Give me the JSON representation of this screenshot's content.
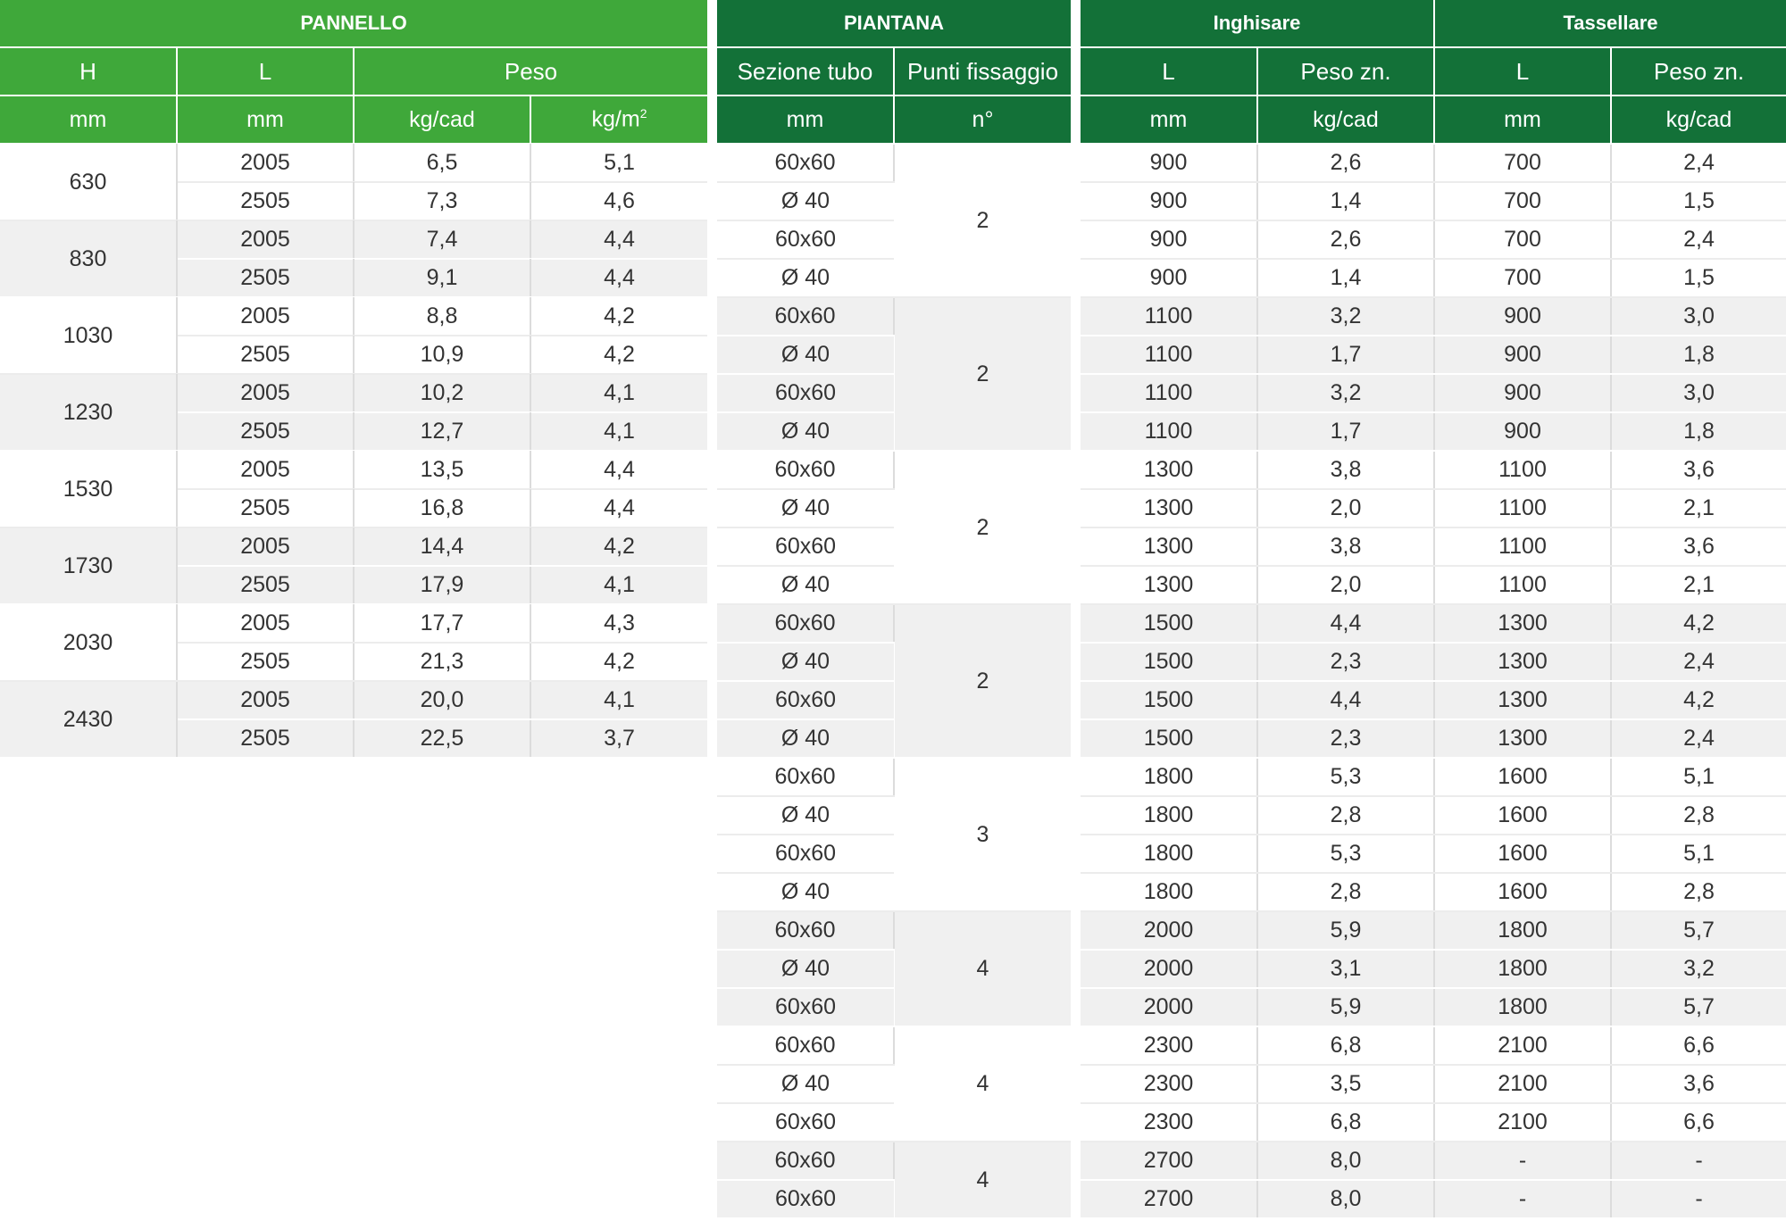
{
  "pannello": {
    "title": "PANNELLO",
    "col_h": "H",
    "col_l": "L",
    "col_peso": "Peso",
    "unit_h": "mm",
    "unit_l": "mm",
    "unit_kgcad": "kg/cad",
    "unit_kgm": "kg/m",
    "unit_kgm_sup": "2",
    "groups": [
      {
        "h": "630",
        "shade": "w",
        "rows": [
          {
            "l": "2005",
            "kgcad": "6,5",
            "kgm2": "5,1"
          },
          {
            "l": "2505",
            "kgcad": "7,3",
            "kgm2": "4,6"
          }
        ]
      },
      {
        "h": "830",
        "shade": "g",
        "rows": [
          {
            "l": "2005",
            "kgcad": "7,4",
            "kgm2": "4,4"
          },
          {
            "l": "2505",
            "kgcad": "9,1",
            "kgm2": "4,4"
          }
        ]
      },
      {
        "h": "1030",
        "shade": "w",
        "rows": [
          {
            "l": "2005",
            "kgcad": "8,8",
            "kgm2": "4,2"
          },
          {
            "l": "2505",
            "kgcad": "10,9",
            "kgm2": "4,2"
          }
        ]
      },
      {
        "h": "1230",
        "shade": "g",
        "rows": [
          {
            "l": "2005",
            "kgcad": "10,2",
            "kgm2": "4,1"
          },
          {
            "l": "2505",
            "kgcad": "12,7",
            "kgm2": "4,1"
          }
        ]
      },
      {
        "h": "1530",
        "shade": "w",
        "rows": [
          {
            "l": "2005",
            "kgcad": "13,5",
            "kgm2": "4,4"
          },
          {
            "l": "2505",
            "kgcad": "16,8",
            "kgm2": "4,4"
          }
        ]
      },
      {
        "h": "1730",
        "shade": "g",
        "rows": [
          {
            "l": "2005",
            "kgcad": "14,4",
            "kgm2": "4,2"
          },
          {
            "l": "2505",
            "kgcad": "17,9",
            "kgm2": "4,1"
          }
        ]
      },
      {
        "h": "2030",
        "shade": "w",
        "rows": [
          {
            "l": "2005",
            "kgcad": "17,7",
            "kgm2": "4,3"
          },
          {
            "l": "2505",
            "kgcad": "21,3",
            "kgm2": "4,2"
          }
        ]
      },
      {
        "h": "2430",
        "shade": "g",
        "rows": [
          {
            "l": "2005",
            "kgcad": "20,0",
            "kgm2": "4,1"
          },
          {
            "l": "2505",
            "kgcad": "22,5",
            "kgm2": "3,7"
          }
        ]
      }
    ]
  },
  "piantana": {
    "title": "PIANTANA",
    "col_sezione": "Sezione tubo",
    "col_punti": "Punti fissaggio",
    "unit_sezione": "mm",
    "unit_punti": "n°",
    "groups": [
      {
        "punti": "2",
        "shade": "w",
        "sections": [
          "60x60",
          "Ø 40",
          "60x60",
          "Ø 40"
        ]
      },
      {
        "punti": "2",
        "shade": "g",
        "sections": [
          "60x60",
          "Ø 40",
          "60x60",
          "Ø 40"
        ]
      },
      {
        "punti": "2",
        "shade": "w",
        "sections": [
          "60x60",
          "Ø 40",
          "60x60",
          "Ø 40"
        ]
      },
      {
        "punti": "2",
        "shade": "g",
        "sections": [
          "60x60",
          "Ø 40",
          "60x60",
          "Ø 40"
        ]
      },
      {
        "punti": "3",
        "shade": "w",
        "sections": [
          "60x60",
          "Ø 40",
          "60x60",
          "Ø 40"
        ]
      },
      {
        "punti": "4",
        "shade": "g",
        "sections": [
          "60x60",
          "Ø 40",
          "60x60"
        ]
      },
      {
        "punti": "4",
        "shade": "w",
        "sections": [
          "60x60",
          "Ø 40",
          "60x60"
        ]
      },
      {
        "punti": "4",
        "shade": "g",
        "sections": [
          "60x60",
          "60x60"
        ]
      }
    ]
  },
  "fixing": {
    "inghisare_title": "Inghisare",
    "tassellare_title": "Tassellare",
    "col_l": "L",
    "col_peso": "Peso zn.",
    "unit_mm": "mm",
    "unit_kgcad": "kg/cad",
    "groups": [
      {
        "shade": "w",
        "rows": [
          [
            "900",
            "2,6",
            "700",
            "2,4"
          ],
          [
            "900",
            "1,4",
            "700",
            "1,5"
          ],
          [
            "900",
            "2,6",
            "700",
            "2,4"
          ],
          [
            "900",
            "1,4",
            "700",
            "1,5"
          ]
        ]
      },
      {
        "shade": "g",
        "rows": [
          [
            "1100",
            "3,2",
            "900",
            "3,0"
          ],
          [
            "1100",
            "1,7",
            "900",
            "1,8"
          ],
          [
            "1100",
            "3,2",
            "900",
            "3,0"
          ],
          [
            "1100",
            "1,7",
            "900",
            "1,8"
          ]
        ]
      },
      {
        "shade": "w",
        "rows": [
          [
            "1300",
            "3,8",
            "1100",
            "3,6"
          ],
          [
            "1300",
            "2,0",
            "1100",
            "2,1"
          ],
          [
            "1300",
            "3,8",
            "1100",
            "3,6"
          ],
          [
            "1300",
            "2,0",
            "1100",
            "2,1"
          ]
        ]
      },
      {
        "shade": "g",
        "rows": [
          [
            "1500",
            "4,4",
            "1300",
            "4,2"
          ],
          [
            "1500",
            "2,3",
            "1300",
            "2,4"
          ],
          [
            "1500",
            "4,4",
            "1300",
            "4,2"
          ],
          [
            "1500",
            "2,3",
            "1300",
            "2,4"
          ]
        ]
      },
      {
        "shade": "w",
        "rows": [
          [
            "1800",
            "5,3",
            "1600",
            "5,1"
          ],
          [
            "1800",
            "2,8",
            "1600",
            "2,8"
          ],
          [
            "1800",
            "5,3",
            "1600",
            "5,1"
          ],
          [
            "1800",
            "2,8",
            "1600",
            "2,8"
          ]
        ]
      },
      {
        "shade": "g",
        "rows": [
          [
            "2000",
            "5,9",
            "1800",
            "5,7"
          ],
          [
            "2000",
            "3,1",
            "1800",
            "3,2"
          ],
          [
            "2000",
            "5,9",
            "1800",
            "5,7"
          ]
        ]
      },
      {
        "shade": "w",
        "rows": [
          [
            "2300",
            "6,8",
            "2100",
            "6,6"
          ],
          [
            "2300",
            "3,5",
            "2100",
            "3,6"
          ],
          [
            "2300",
            "6,8",
            "2100",
            "6,6"
          ]
        ]
      },
      {
        "shade": "g",
        "rows": [
          [
            "2700",
            "8,0",
            "-",
            "-"
          ],
          [
            "2700",
            "8,0",
            "-",
            "-"
          ]
        ]
      }
    ]
  }
}
